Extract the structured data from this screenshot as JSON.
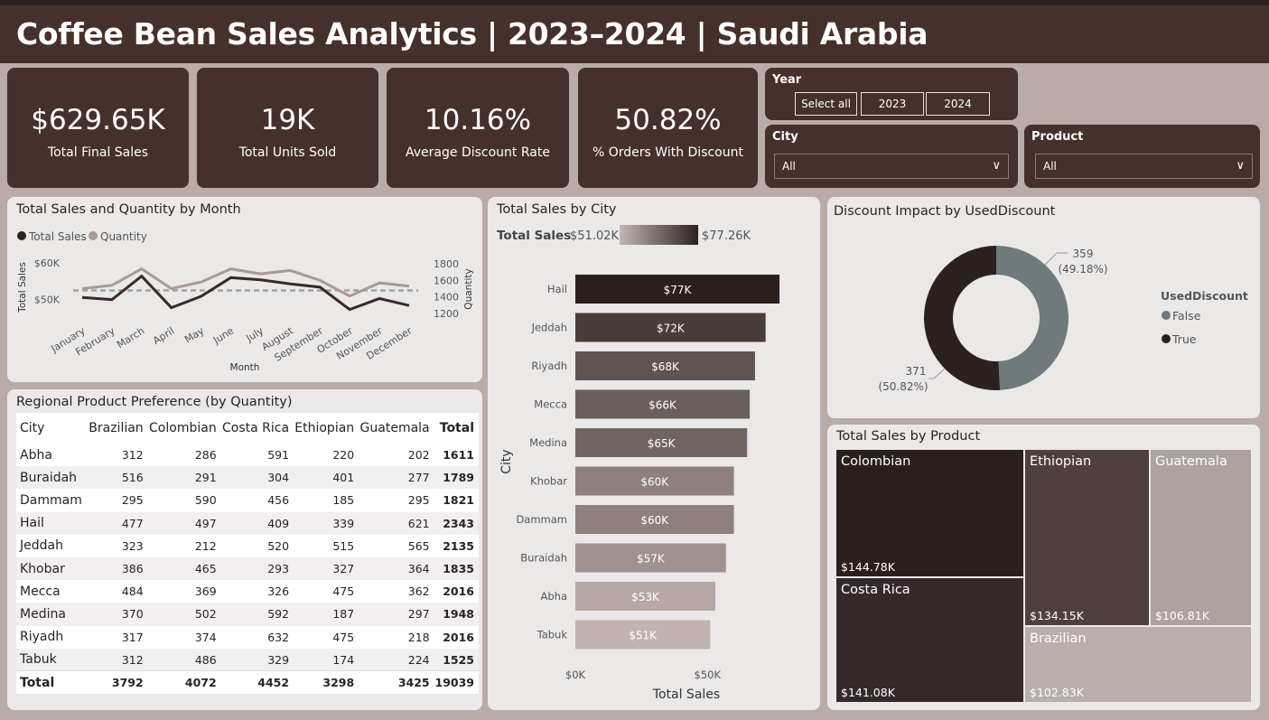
{
  "header": {
    "title": "Coffee Bean Sales Analytics | 2023–2024 | Saudi Arabia"
  },
  "kpis": [
    {
      "value": "$629.65K",
      "label": "Total Final Sales"
    },
    {
      "value": "19K",
      "label": "Total Units Sold"
    },
    {
      "value": "10.16%",
      "label": "Average Discount Rate"
    },
    {
      "value": "50.82%",
      "label": "% Orders With Discount"
    }
  ],
  "slicers": {
    "year": {
      "title": "Year",
      "options": [
        "Select all",
        "2023",
        "2024"
      ]
    },
    "city": {
      "title": "City",
      "value": "All"
    },
    "product": {
      "title": "Product",
      "value": "All"
    }
  },
  "line_panel": {
    "title": "Total Sales and Quantity by Month",
    "legend": [
      "Total Sales",
      "Quantity"
    ]
  },
  "city_panel": {
    "title": "Total Sales by City",
    "gradient_label": "Total Sales",
    "gradient_min": "$51.02K",
    "gradient_max": "$77.26K"
  },
  "donut_panel": {
    "title": "Discount Impact by UsedDiscount",
    "legend_title": "UsedDiscount",
    "legend": [
      "False",
      "True"
    ],
    "label_false": [
      "359",
      "(49.18%)"
    ],
    "label_true": [
      "371",
      "(50.82%)"
    ]
  },
  "table_panel": {
    "title": "Regional Product Preference (by Quantity)",
    "headers": [
      "City",
      "Brazilian",
      "Colombian",
      "Costa Rica",
      "Ethiopian",
      "Guatemala",
      "Total"
    ],
    "rows": [
      [
        "Abha",
        "312",
        "286",
        "591",
        "220",
        "202",
        "1611"
      ],
      [
        "Buraidah",
        "516",
        "291",
        "304",
        "401",
        "277",
        "1789"
      ],
      [
        "Dammam",
        "295",
        "590",
        "456",
        "185",
        "295",
        "1821"
      ],
      [
        "Hail",
        "477",
        "497",
        "409",
        "339",
        "621",
        "2343"
      ],
      [
        "Jeddah",
        "323",
        "212",
        "520",
        "515",
        "565",
        "2135"
      ],
      [
        "Khobar",
        "386",
        "465",
        "293",
        "327",
        "364",
        "1835"
      ],
      [
        "Mecca",
        "484",
        "369",
        "326",
        "475",
        "362",
        "2016"
      ],
      [
        "Medina",
        "370",
        "502",
        "592",
        "187",
        "297",
        "1948"
      ],
      [
        "Riyadh",
        "317",
        "374",
        "632",
        "475",
        "218",
        "2016"
      ],
      [
        "Tabuk",
        "312",
        "486",
        "329",
        "174",
        "224",
        "1525"
      ]
    ],
    "total_row": [
      "Total",
      "3792",
      "4072",
      "4452",
      "3298",
      "3425",
      "19039"
    ]
  },
  "treemap_panel": {
    "title": "Total Sales by Product",
    "items": [
      {
        "name": "Colombian",
        "value": "$144.78K"
      },
      {
        "name": "Costa Rica",
        "value": "$141.08K"
      },
      {
        "name": "Ethiopian",
        "value": "$134.15K"
      },
      {
        "name": "Guatemala",
        "value": "$106.81K"
      },
      {
        "name": "Brazilian",
        "value": "$102.83K"
      }
    ]
  },
  "colors": {
    "dark_brown": "#46302b",
    "darkest": "#2b2220",
    "gray_blue": "#6e7a7c",
    "light_taupe": "#a89a95"
  },
  "chart_data": [
    {
      "type": "line",
      "title": "Total Sales and Quantity by Month",
      "xlabel": "Month",
      "ylabel": "Total Sales",
      "y2label": "Quantity",
      "x": [
        "January",
        "February",
        "March",
        "April",
        "May",
        "June",
        "July",
        "August",
        "September",
        "October",
        "November",
        "December"
      ],
      "ylim": [
        44000,
        62000
      ],
      "y2lim": [
        1100,
        1900
      ],
      "yticks": [
        "$50K",
        "$60K"
      ],
      "y2ticks": [
        "1200",
        "1400",
        "1600",
        "1800"
      ],
      "series": [
        {
          "name": "Total Sales",
          "axis": "left",
          "values": [
            50600,
            50000,
            56400,
            47800,
            50900,
            56000,
            55400,
            54300,
            53400,
            47300,
            50300,
            48400
          ]
        },
        {
          "name": "Quantity",
          "axis": "right",
          "values": [
            1500,
            1540,
            1740,
            1500,
            1580,
            1740,
            1680,
            1720,
            1600,
            1410,
            1570,
            1530
          ]
        }
      ],
      "reference_line": {
        "value": 52500,
        "style": "dashed"
      },
      "legend": "top-left"
    },
    {
      "type": "bar",
      "orientation": "horizontal",
      "title": "Total Sales by City",
      "xlabel": "Total Sales",
      "ylabel": "City",
      "categories": [
        "Hail",
        "Jeddah",
        "Riyadh",
        "Mecca",
        "Medina",
        "Khobar",
        "Dammam",
        "Buraidah",
        "Abha",
        "Tabuk"
      ],
      "values": [
        77260,
        72000,
        68000,
        66000,
        65000,
        60000,
        60000,
        57000,
        53000,
        51020
      ],
      "data_labels": [
        "$77K",
        "$72K",
        "$68K",
        "$66K",
        "$65K",
        "$60K",
        "$60K",
        "$57K",
        "$53K",
        "$51K"
      ],
      "xticks": [
        "$0K",
        "$50K"
      ],
      "xlim": [
        0,
        81000
      ]
    },
    {
      "type": "pie",
      "title": "Discount Impact by UsedDiscount",
      "categories": [
        "False",
        "True"
      ],
      "values": [
        359,
        371
      ],
      "percentages": [
        49.18,
        50.82
      ],
      "legend": "right"
    }
  ]
}
